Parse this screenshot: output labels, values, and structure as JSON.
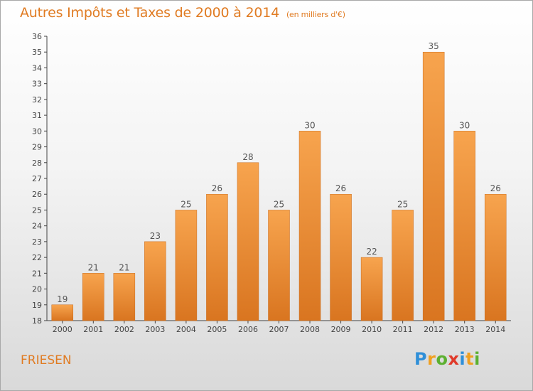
{
  "header": {
    "title": "Autres Impôts et Taxes de 2000 à 2014",
    "unit": "(en milliers d'€)"
  },
  "footer": {
    "commune": "FRIESEN",
    "logo": {
      "letters": [
        "P",
        "r",
        "o",
        "x",
        "i",
        "t",
        "i"
      ]
    }
  },
  "colors": {
    "title": "#e07b22",
    "bar_top": "#f7a44e",
    "bar_bottom": "#d97520",
    "axis": "#444444"
  },
  "chart_data": {
    "type": "bar",
    "title": "Autres Impôts et Taxes de 2000 à 2014",
    "subtitle": "(en milliers d'€)",
    "xlabel": "",
    "ylabel": "",
    "categories": [
      "2000",
      "2001",
      "2002",
      "2003",
      "2004",
      "2005",
      "2006",
      "2007",
      "2008",
      "2009",
      "2010",
      "2011",
      "2012",
      "2013",
      "2014"
    ],
    "values": [
      19,
      21,
      21,
      23,
      25,
      26,
      28,
      25,
      30,
      26,
      22,
      25,
      35,
      30,
      26
    ],
    "ylim": [
      18,
      36
    ],
    "yticks": [
      18,
      19,
      20,
      21,
      22,
      23,
      24,
      25,
      26,
      27,
      28,
      29,
      30,
      31,
      32,
      33,
      34,
      35,
      36
    ],
    "grid": false,
    "legend": "none"
  }
}
